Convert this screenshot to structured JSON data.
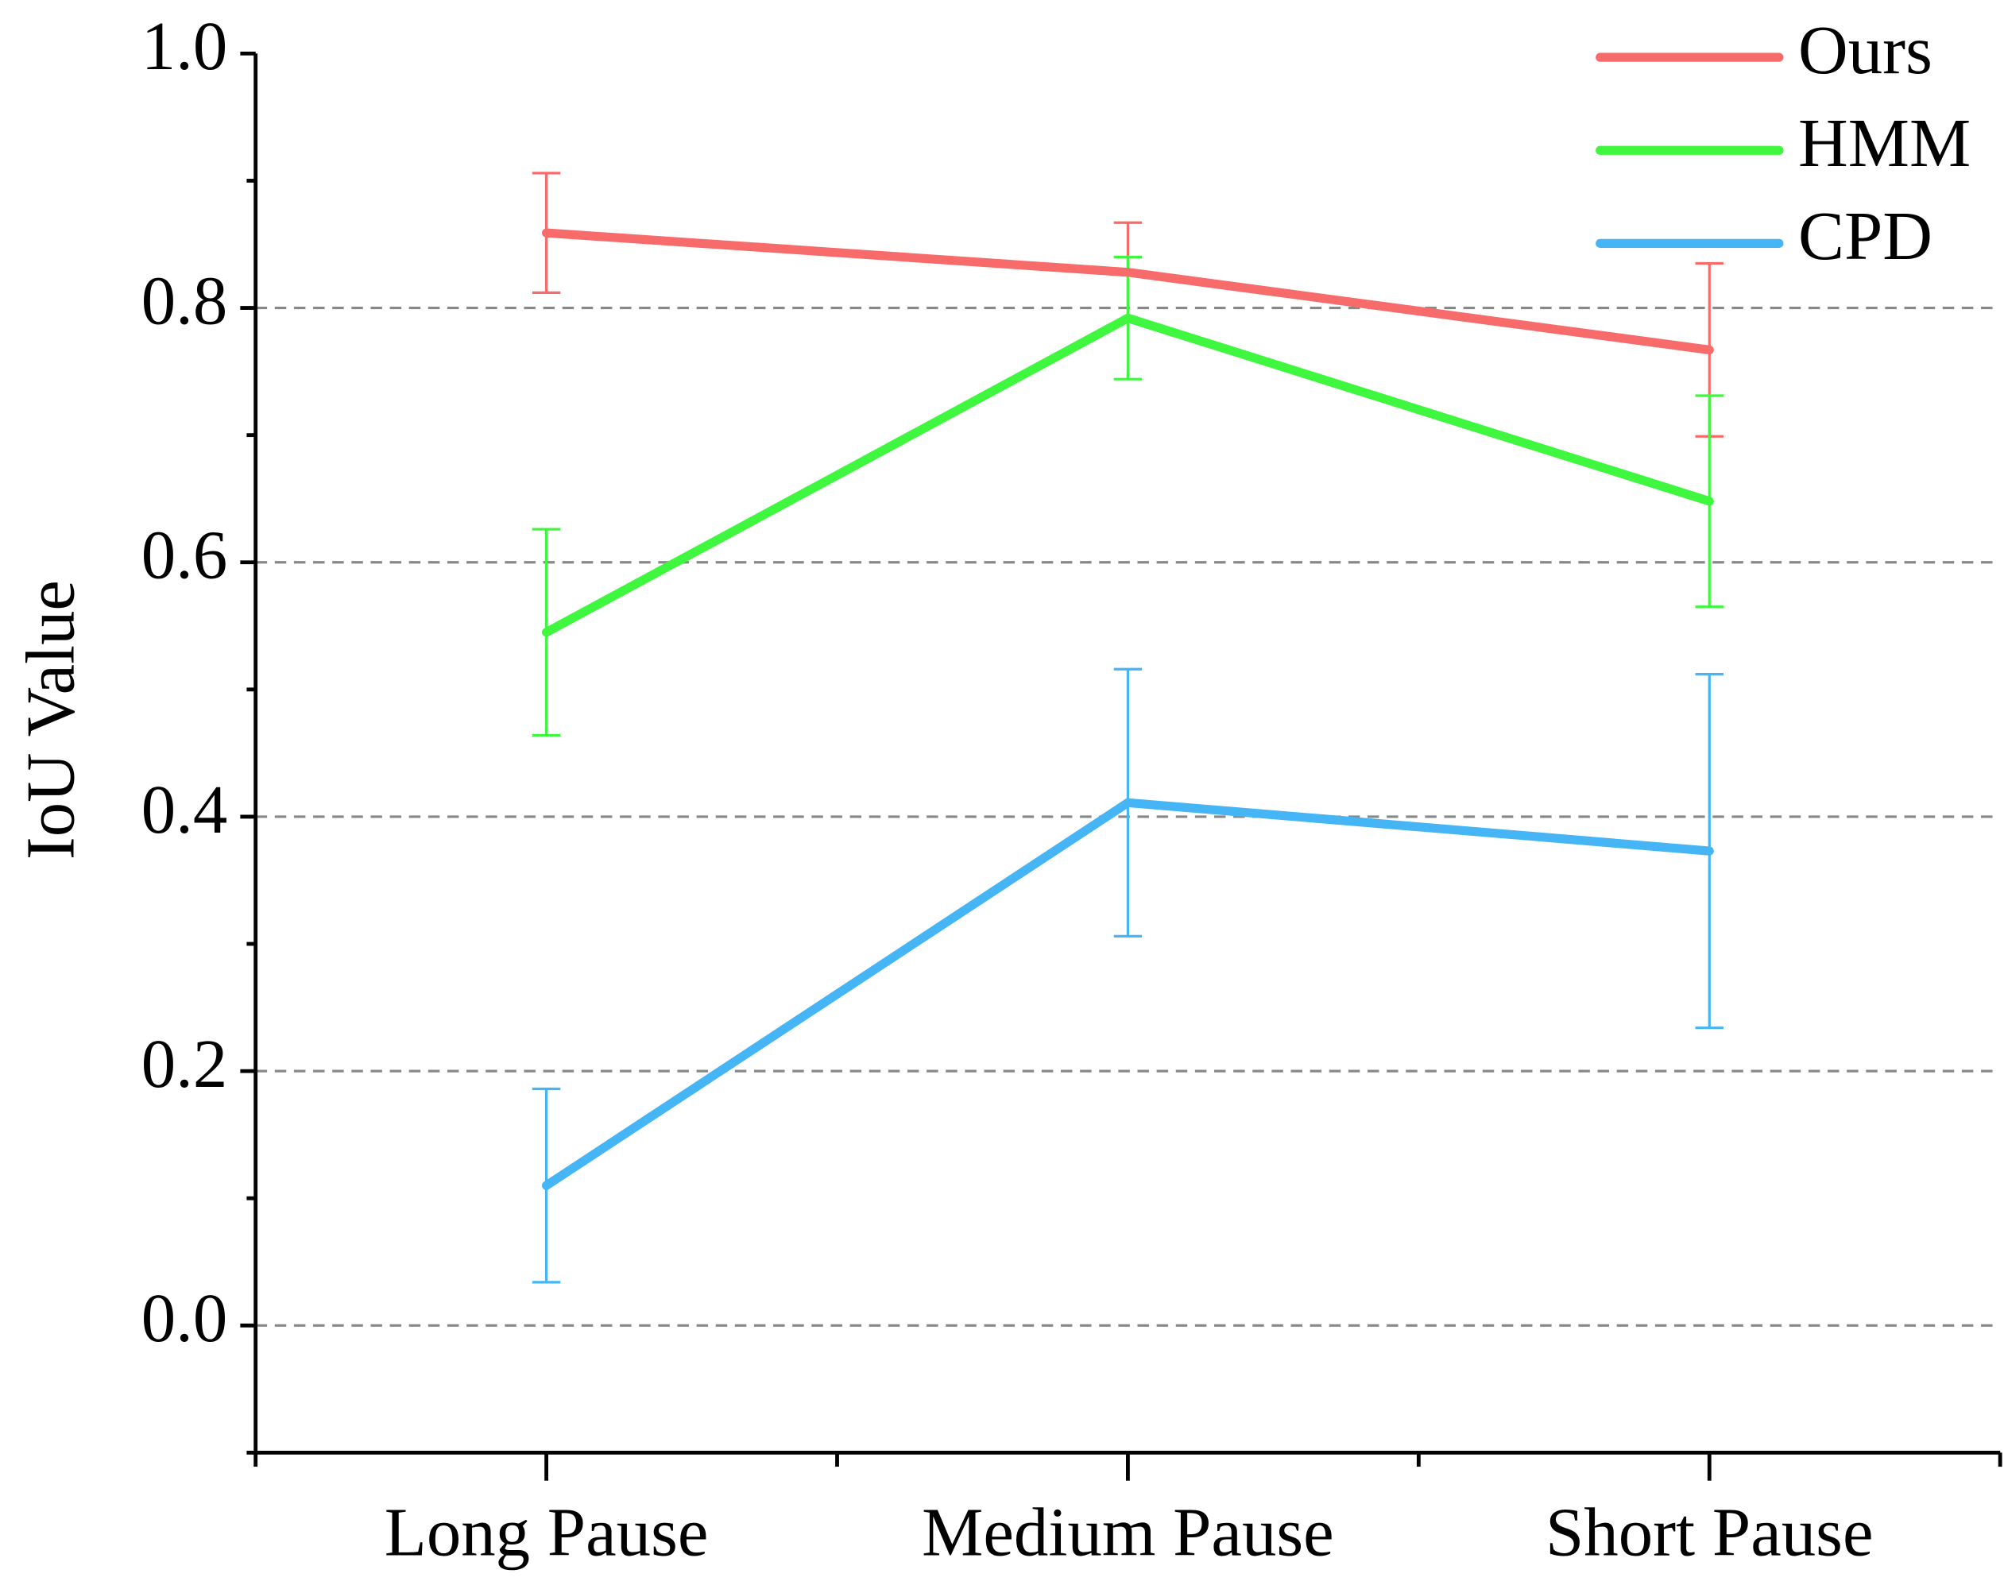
{
  "chart_data": {
    "type": "line",
    "y_label": "IoU Value",
    "categories": [
      "Long Pause",
      "Medium Pause",
      "Short Pause"
    ],
    "series": [
      {
        "name": "Ours",
        "color": "#f86b6b",
        "values": [
          0.859,
          0.828,
          0.767
        ],
        "errors": [
          0.047,
          0.039,
          0.068
        ]
      },
      {
        "name": "HMM",
        "color": "#3ef73e",
        "values": [
          0.545,
          0.792,
          0.648
        ],
        "errors": [
          0.081,
          0.048,
          0.083
        ]
      },
      {
        "name": "CPD",
        "color": "#45b5f5",
        "values": [
          0.11,
          0.411,
          0.373
        ],
        "errors": [
          0.076,
          0.105,
          0.139
        ]
      }
    ],
    "ylim": [
      -0.1,
      1.0
    ],
    "yticks": [
      {
        "value": 0,
        "label": "0.0"
      },
      {
        "value": 0.2,
        "label": "0.2"
      },
      {
        "value": 0.4,
        "label": "0.4"
      },
      {
        "value": 0.6,
        "label": "0.6"
      },
      {
        "value": 0.8,
        "label": "0.8"
      },
      {
        "value": 1,
        "label": "1.0"
      }
    ],
    "grid": true,
    "legend": "upper right"
  }
}
